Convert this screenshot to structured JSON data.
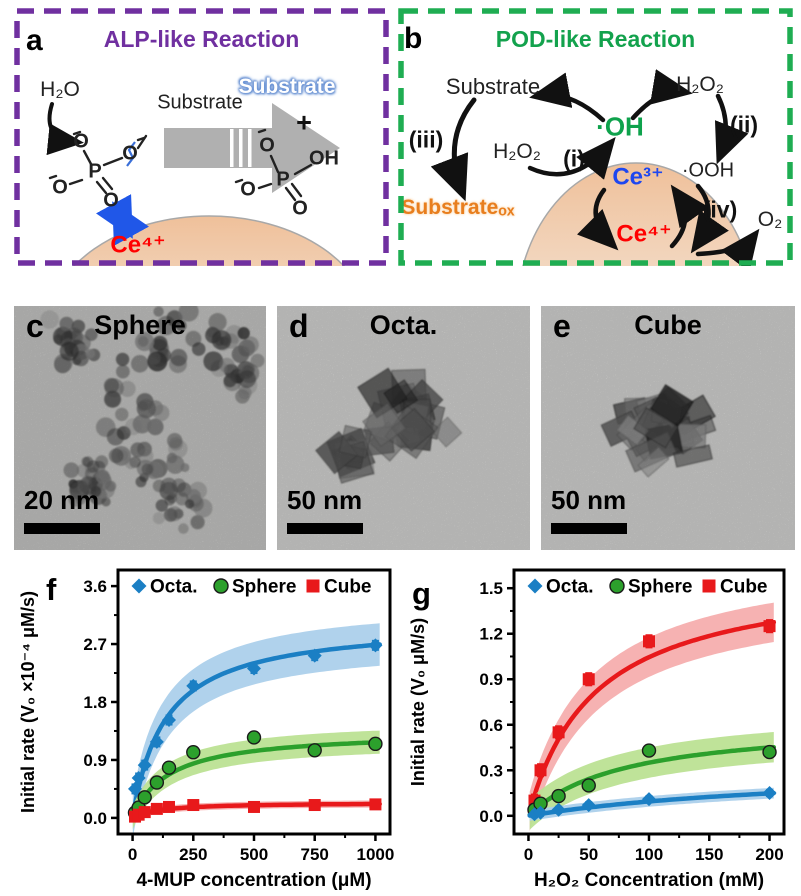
{
  "panel_a": {
    "label": "a",
    "title": "ALP-like Reaction",
    "border_color": "#7030A0",
    "title_color": "#7030A0",
    "h2o": "H₂O",
    "substrate": "Substrate",
    "substrate_pill": "Substrate",
    "plus": "+",
    "ce4": "Ce⁴⁺",
    "atom_o": "O",
    "atom_p": "P",
    "atom_oh": "OH"
  },
  "panel_b": {
    "label": "b",
    "title": "POD-like Reaction",
    "border_color": "#1FAD52",
    "title_color": "#13A24D",
    "substrate": "Substrate",
    "oh_radical": "·OH",
    "h2o2_top": "H₂O₂",
    "h2o2_mid": "H₂O₂",
    "step_i": "(i)",
    "step_ii": "(ii)",
    "step_iii": "(iii)",
    "step_iv": "(iv)",
    "ooh": "·OOH",
    "substrate_ox": "Substrateₒₓ",
    "ce3": "Ce³⁺",
    "ce4": "Ce⁴⁺",
    "o2": "O₂"
  },
  "tem_panels": [
    {
      "id": "c",
      "label": "c",
      "title": "Sphere",
      "scale_text": "20 nm",
      "shape": "sphere"
    },
    {
      "id": "d",
      "label": "d",
      "title": "Octa.",
      "scale_text": "50 nm",
      "shape": "octa"
    },
    {
      "id": "e",
      "label": "e",
      "title": "Cube",
      "scale_text": "50 nm",
      "shape": "cube"
    }
  ],
  "chart_data": [
    {
      "id": "f",
      "panel_label": "f",
      "type": "scatter",
      "xlabel": "4-MUP concentration (μM)",
      "ylabel": "Initial rate (V₀ ×10⁻⁴ μM/s)",
      "xlim": [
        -60,
        1060
      ],
      "ylim": [
        -0.25,
        3.85
      ],
      "xticks": [
        0,
        250,
        500,
        750,
        1000
      ],
      "yticks": [
        0.0,
        0.9,
        1.8,
        2.7,
        3.6
      ],
      "grid": false,
      "legend_position": "top-inside",
      "legend": [
        {
          "label": "Octa.",
          "marker": "diamond",
          "color": "#1B7FC4"
        },
        {
          "label": "Sphere",
          "marker": "circle",
          "color": "#2CA02C"
        },
        {
          "label": "Cube",
          "marker": "square",
          "color": "#E8191B"
        }
      ],
      "series": [
        {
          "name": "Octa.",
          "marker": "diamond",
          "color": "#1B7FC4",
          "band_color": "#ACD0EB",
          "band_halfwidth": 0.33,
          "fit_vmax": 3.05,
          "fit_km": 135,
          "err": 0.07,
          "x": [
            10,
            25,
            50,
            100,
            150,
            250,
            500,
            750,
            1000
          ],
          "y": [
            0.45,
            0.62,
            0.82,
            1.18,
            1.52,
            2.05,
            2.32,
            2.52,
            2.68
          ]
        },
        {
          "name": "Sphere",
          "marker": "circle",
          "color": "#2CA02C",
          "band_color": "#BCE194",
          "band_halfwidth": 0.18,
          "fit_vmax": 1.35,
          "fit_km": 150,
          "err": 0.05,
          "x": [
            10,
            25,
            50,
            100,
            150,
            250,
            500,
            750,
            1000
          ],
          "y": [
            0.08,
            0.16,
            0.32,
            0.55,
            0.78,
            1.02,
            1.25,
            1.05,
            1.15
          ]
        },
        {
          "name": "Cube",
          "marker": "square",
          "color": "#E8191B",
          "band_color": "#F6AEAE",
          "band_halfwidth": 0.055,
          "fit_vmax": 0.24,
          "fit_km": 110,
          "err": 0.04,
          "x": [
            10,
            25,
            50,
            100,
            150,
            250,
            500,
            750,
            1000
          ],
          "y": [
            0.02,
            0.05,
            0.09,
            0.14,
            0.17,
            0.2,
            0.17,
            0.2,
            0.21
          ]
        }
      ]
    },
    {
      "id": "g",
      "panel_label": "g",
      "type": "scatter",
      "xlabel": "H₂O₂ Concentration (mM)",
      "ylabel": "Initial rate (V₀ μM/s)",
      "xlim": [
        -12,
        212
      ],
      "ylim": [
        -0.12,
        1.62
      ],
      "xticks": [
        0,
        50,
        100,
        150,
        200
      ],
      "yticks": [
        0.0,
        0.3,
        0.6,
        0.9,
        1.2,
        1.5
      ],
      "grid": false,
      "legend_position": "top-inside",
      "legend": [
        {
          "label": "Octa.",
          "marker": "diamond",
          "color": "#1B7FC4"
        },
        {
          "label": "Sphere",
          "marker": "circle",
          "color": "#2CA02C"
        },
        {
          "label": "Cube",
          "marker": "square",
          "color": "#E8191B"
        }
      ],
      "series": [
        {
          "name": "Cube",
          "marker": "square",
          "color": "#E8191B",
          "band_color": "#F6AEAE",
          "band_halfwidth": 0.13,
          "fit_vmax": 1.62,
          "fit_km": 55,
          "err": 0.04,
          "x": [
            5,
            10,
            25,
            50,
            100,
            200
          ],
          "y": [
            0.1,
            0.3,
            0.55,
            0.9,
            1.15,
            1.25
          ]
        },
        {
          "name": "Sphere",
          "marker": "circle",
          "color": "#2CA02C",
          "band_color": "#BCE194",
          "band_halfwidth": 0.1,
          "fit_vmax": 0.63,
          "fit_km": 80,
          "err": 0.03,
          "x": [
            5,
            10,
            25,
            50,
            100,
            200
          ],
          "y": [
            0.04,
            0.08,
            0.13,
            0.2,
            0.43,
            0.42
          ]
        },
        {
          "name": "Octa.",
          "marker": "diamond",
          "color": "#1B7FC4",
          "band_color": "#ACD0EB",
          "band_halfwidth": 0.035,
          "fit_vmax": 0.34,
          "fit_km": 260,
          "err": 0.02,
          "x": [
            5,
            10,
            25,
            50,
            100,
            200
          ],
          "y": [
            0.01,
            0.02,
            0.04,
            0.07,
            0.11,
            0.15
          ]
        }
      ]
    }
  ],
  "colors": {
    "purple_border": "#7030A0",
    "green_border": "#1FAD52",
    "octa_blue": "#1B7FC4",
    "sphere_green": "#2CA02C",
    "cube_red": "#E8191B",
    "ce3_blue": "#1E47F0",
    "ce4_red": "#FF0000",
    "oh_green": "#0EA24C",
    "substrate_ox_orange": "#E87E1E"
  }
}
